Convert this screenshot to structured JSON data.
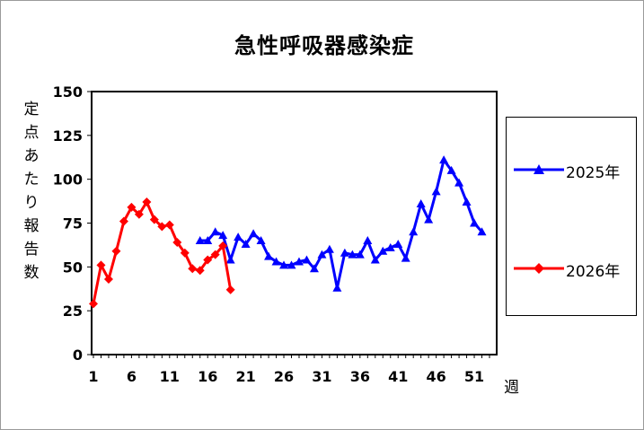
{
  "chart_data": {
    "type": "line",
    "title": "急性呼吸器感染症",
    "ylabel": "定点あたり報告数",
    "xlabel": "週",
    "ylim": [
      0,
      150
    ],
    "yticks": [
      0,
      25,
      50,
      75,
      100,
      125,
      150
    ],
    "xlim": [
      1,
      53
    ],
    "xticks": [
      1,
      6,
      11,
      16,
      21,
      26,
      31,
      36,
      41,
      46,
      51
    ],
    "legend_position": "right",
    "grid": false,
    "series": [
      {
        "name": "2025年",
        "color": "#0000ff",
        "marker": "triangle",
        "x": [
          15,
          16,
          17,
          18,
          19,
          20,
          21,
          22,
          23,
          24,
          25,
          26,
          27,
          28,
          29,
          30,
          31,
          32,
          33,
          34,
          35,
          36,
          37,
          38,
          39,
          40,
          41,
          42,
          43,
          44,
          45,
          46,
          47,
          48,
          49,
          50,
          51,
          52
        ],
        "values": [
          65,
          65,
          70,
          68,
          54,
          67,
          63,
          69,
          65,
          56,
          53,
          51,
          51,
          53,
          54,
          49,
          57,
          60,
          38,
          58,
          57,
          57,
          65,
          54,
          59,
          61,
          63,
          55,
          70,
          86,
          77,
          93,
          111,
          105,
          98,
          87,
          75,
          70
        ]
      },
      {
        "name": "2026年",
        "color": "#ff0000",
        "marker": "diamond",
        "x": [
          1,
          2,
          3,
          4,
          5,
          6,
          7,
          8,
          9,
          10,
          11,
          12,
          13,
          14,
          15,
          16,
          17,
          18,
          19
        ],
        "values": [
          29,
          51,
          43,
          59,
          76,
          84,
          80,
          87,
          77,
          73,
          74,
          64,
          58,
          49,
          48,
          54,
          57,
          62,
          37
        ]
      }
    ]
  }
}
